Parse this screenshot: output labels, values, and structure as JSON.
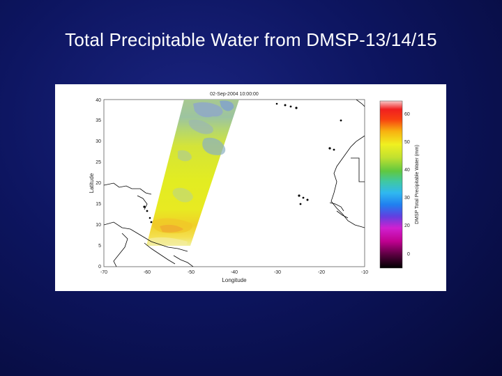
{
  "slide": {
    "title": "Total Precipitable Water from DMSP-13/14/15"
  },
  "map": {
    "timestamp": "02-Sep-2004 10:00:00",
    "xlabel": "Longitude",
    "ylabel": "Latitude",
    "x_ticks": [
      "-70",
      "-60",
      "-50",
      "-40",
      "-30",
      "-20",
      "-10"
    ],
    "y_ticks": [
      "0",
      "5",
      "10",
      "15",
      "20",
      "25",
      "30",
      "35",
      "40"
    ],
    "colorbar": {
      "label": "DMSP Total Precipitable Water (mm)",
      "ticks": [
        "0",
        "20",
        "30",
        "40",
        "50",
        "60"
      ],
      "range": [
        0,
        70
      ]
    },
    "colors": {
      "background": "#0d1560",
      "coastline": "#000000",
      "swath_dry": "#7fb0c8",
      "swath_mid": "#c8e040",
      "swath_moist": "#e8f020"
    }
  }
}
